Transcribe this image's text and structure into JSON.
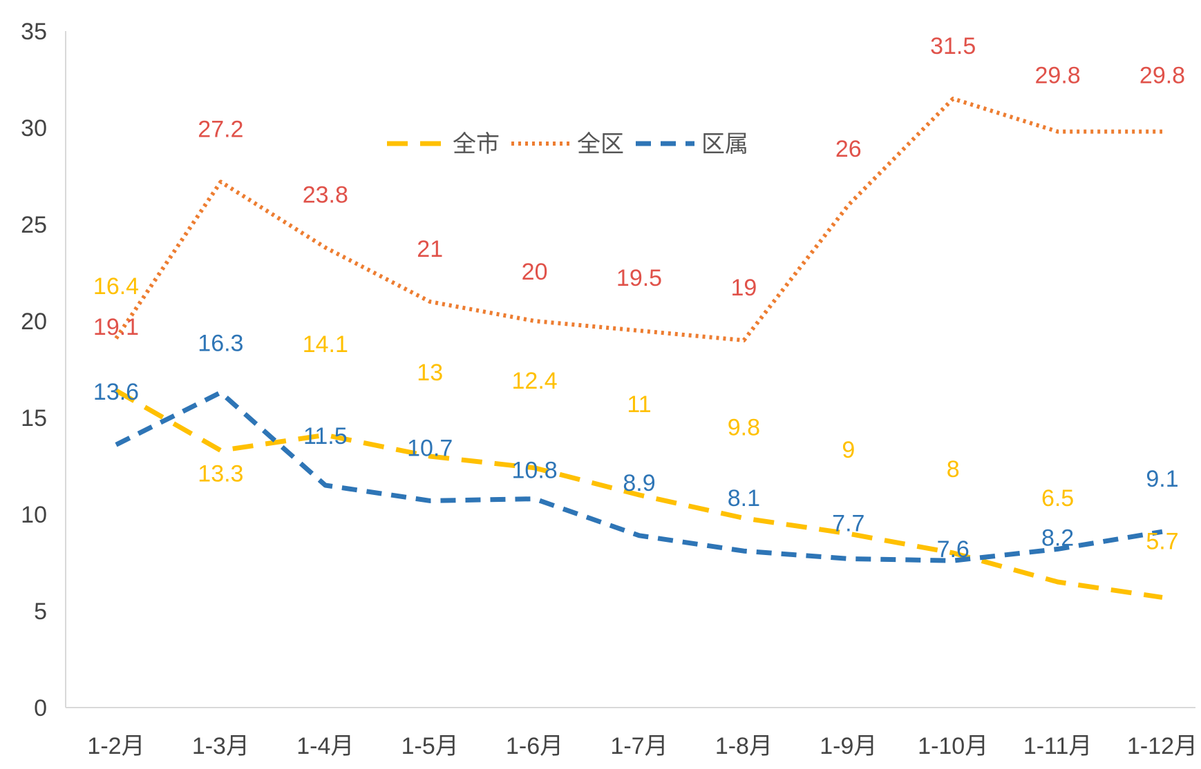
{
  "chart_data": {
    "type": "line",
    "categories": [
      "1-2月",
      "1-3月",
      "1-4月",
      "1-5月",
      "1-6月",
      "1-7月",
      "1-8月",
      "1-9月",
      "1-10月",
      "1-11月",
      "1-12月"
    ],
    "ylim": [
      0,
      35
    ],
    "yticks": [
      "0",
      "5",
      "10",
      "15",
      "20",
      "25",
      "30",
      "35"
    ],
    "grid": false,
    "legend_position": "top-center",
    "series": [
      {
        "name": "全市",
        "color": "#FFC000",
        "label_color": "#FFC000",
        "style": "long-dash",
        "values": [
          16.4,
          13.3,
          14.1,
          13,
          12.4,
          11,
          9.8,
          9,
          8,
          6.5,
          5.7
        ],
        "labels": [
          "16.4",
          "13.3",
          "14.1",
          "13",
          "12.4",
          "11",
          "9.8",
          "9",
          "8",
          "6.5",
          "5.7"
        ]
      },
      {
        "name": "全区",
        "color": "#ED7D31",
        "label_color": "#E0524A",
        "style": "dotted",
        "values": [
          19.1,
          27.2,
          23.8,
          21,
          20,
          19.5,
          19,
          26,
          31.5,
          29.8,
          29.8
        ],
        "labels": [
          "19.1",
          "27.2",
          "23.8",
          "21",
          "20",
          "19.5",
          "19",
          "26",
          "31.5",
          "29.8",
          "29.8"
        ]
      },
      {
        "name": "区属",
        "color": "#2E75B6",
        "label_color": "#2E75B6",
        "style": "dashed",
        "values": [
          13.6,
          16.3,
          11.5,
          10.7,
          10.8,
          8.9,
          8.1,
          7.7,
          7.6,
          8.2,
          9.1
        ],
        "labels": [
          "13.6",
          "16.3",
          "11.5",
          "10.7",
          "10.8",
          "8.9",
          "8.1",
          "7.7",
          "7.6",
          "8.2",
          "9.1"
        ]
      }
    ]
  }
}
